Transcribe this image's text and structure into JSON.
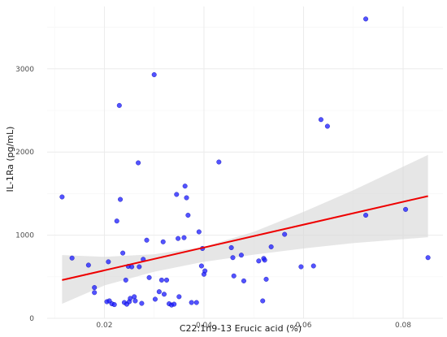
{
  "chart_data": {
    "type": "scatter",
    "title": "",
    "xlabel": "C22:1n9-13 Erucic acid (%)",
    "ylabel": "IL-1Ra (pg/mL)",
    "xlim": [
      0.0085,
      0.088
    ],
    "ylim": [
      0,
      3750
    ],
    "xticks": [
      0.02,
      0.04,
      0.06,
      0.08
    ],
    "xtick_labels": [
      "0.02",
      "0.04",
      "0.06",
      "0.08"
    ],
    "yticks": [
      0,
      1000,
      2000,
      3000
    ],
    "ytick_labels": [
      "0",
      "1000",
      "2000",
      "3000"
    ],
    "grid": true,
    "legend": "none",
    "colors": {
      "points": "#1a1aff",
      "point_stroke": "#0000aa",
      "fit_line": "#ee0000",
      "ci_band": "#d9d9d9",
      "grid_major": "#ebebeb",
      "grid_minor": "#f5f5f5"
    },
    "points": [
      {
        "x": 0.0115,
        "y": 1460
      },
      {
        "x": 0.0135,
        "y": 725
      },
      {
        "x": 0.0168,
        "y": 640
      },
      {
        "x": 0.018,
        "y": 370
      },
      {
        "x": 0.018,
        "y": 310
      },
      {
        "x": 0.0205,
        "y": 200
      },
      {
        "x": 0.0208,
        "y": 680
      },
      {
        "x": 0.021,
        "y": 210
      },
      {
        "x": 0.0215,
        "y": 175
      },
      {
        "x": 0.022,
        "y": 165
      },
      {
        "x": 0.0225,
        "y": 1170
      },
      {
        "x": 0.023,
        "y": 2560
      },
      {
        "x": 0.0232,
        "y": 1430
      },
      {
        "x": 0.0237,
        "y": 785
      },
      {
        "x": 0.024,
        "y": 190
      },
      {
        "x": 0.0243,
        "y": 460
      },
      {
        "x": 0.0245,
        "y": 170
      },
      {
        "x": 0.0248,
        "y": 625
      },
      {
        "x": 0.025,
        "y": 200
      },
      {
        "x": 0.0252,
        "y": 240
      },
      {
        "x": 0.0255,
        "y": 620
      },
      {
        "x": 0.026,
        "y": 260
      },
      {
        "x": 0.0262,
        "y": 210
      },
      {
        "x": 0.0268,
        "y": 1870
      },
      {
        "x": 0.027,
        "y": 620
      },
      {
        "x": 0.0275,
        "y": 180
      },
      {
        "x": 0.0278,
        "y": 710
      },
      {
        "x": 0.0285,
        "y": 940
      },
      {
        "x": 0.029,
        "y": 490
      },
      {
        "x": 0.03,
        "y": 2930
      },
      {
        "x": 0.0302,
        "y": 230
      },
      {
        "x": 0.031,
        "y": 320
      },
      {
        "x": 0.0315,
        "y": 460
      },
      {
        "x": 0.0318,
        "y": 920
      },
      {
        "x": 0.032,
        "y": 290
      },
      {
        "x": 0.0325,
        "y": 460
      },
      {
        "x": 0.033,
        "y": 175
      },
      {
        "x": 0.0335,
        "y": 160
      },
      {
        "x": 0.034,
        "y": 170
      },
      {
        "x": 0.0345,
        "y": 1490
      },
      {
        "x": 0.0348,
        "y": 960
      },
      {
        "x": 0.035,
        "y": 260
      },
      {
        "x": 0.036,
        "y": 970
      },
      {
        "x": 0.0362,
        "y": 1590
      },
      {
        "x": 0.0365,
        "y": 1450
      },
      {
        "x": 0.0368,
        "y": 1240
      },
      {
        "x": 0.0375,
        "y": 190
      },
      {
        "x": 0.0385,
        "y": 190
      },
      {
        "x": 0.039,
        "y": 1040
      },
      {
        "x": 0.0395,
        "y": 630
      },
      {
        "x": 0.0397,
        "y": 840
      },
      {
        "x": 0.04,
        "y": 530
      },
      {
        "x": 0.0402,
        "y": 570
      },
      {
        "x": 0.043,
        "y": 1880
      },
      {
        "x": 0.0455,
        "y": 850
      },
      {
        "x": 0.0458,
        "y": 730
      },
      {
        "x": 0.046,
        "y": 510
      },
      {
        "x": 0.0475,
        "y": 760
      },
      {
        "x": 0.048,
        "y": 450
      },
      {
        "x": 0.051,
        "y": 690
      },
      {
        "x": 0.052,
        "y": 720
      },
      {
        "x": 0.0522,
        "y": 700
      },
      {
        "x": 0.0525,
        "y": 470
      },
      {
        "x": 0.0518,
        "y": 210
      },
      {
        "x": 0.0535,
        "y": 860
      },
      {
        "x": 0.0562,
        "y": 1010
      },
      {
        "x": 0.0595,
        "y": 620
      },
      {
        "x": 0.062,
        "y": 630
      },
      {
        "x": 0.0635,
        "y": 2390
      },
      {
        "x": 0.0648,
        "y": 2310
      },
      {
        "x": 0.0725,
        "y": 3600
      },
      {
        "x": 0.0725,
        "y": 1240
      },
      {
        "x": 0.0805,
        "y": 1310
      },
      {
        "x": 0.085,
        "y": 730
      }
    ],
    "fit_line": {
      "x": [
        0.0115,
        0.085
      ],
      "y": [
        460,
        1470
      ]
    },
    "confidence_band": {
      "x": [
        0.0115,
        0.02,
        0.03,
        0.04,
        0.05,
        0.06,
        0.07,
        0.085
      ],
      "lower": [
        175,
        395,
        560,
        680,
        765,
        840,
        905,
        975
      ],
      "upper": [
        760,
        740,
        770,
        860,
        1040,
        1280,
        1540,
        1965
      ]
    }
  }
}
